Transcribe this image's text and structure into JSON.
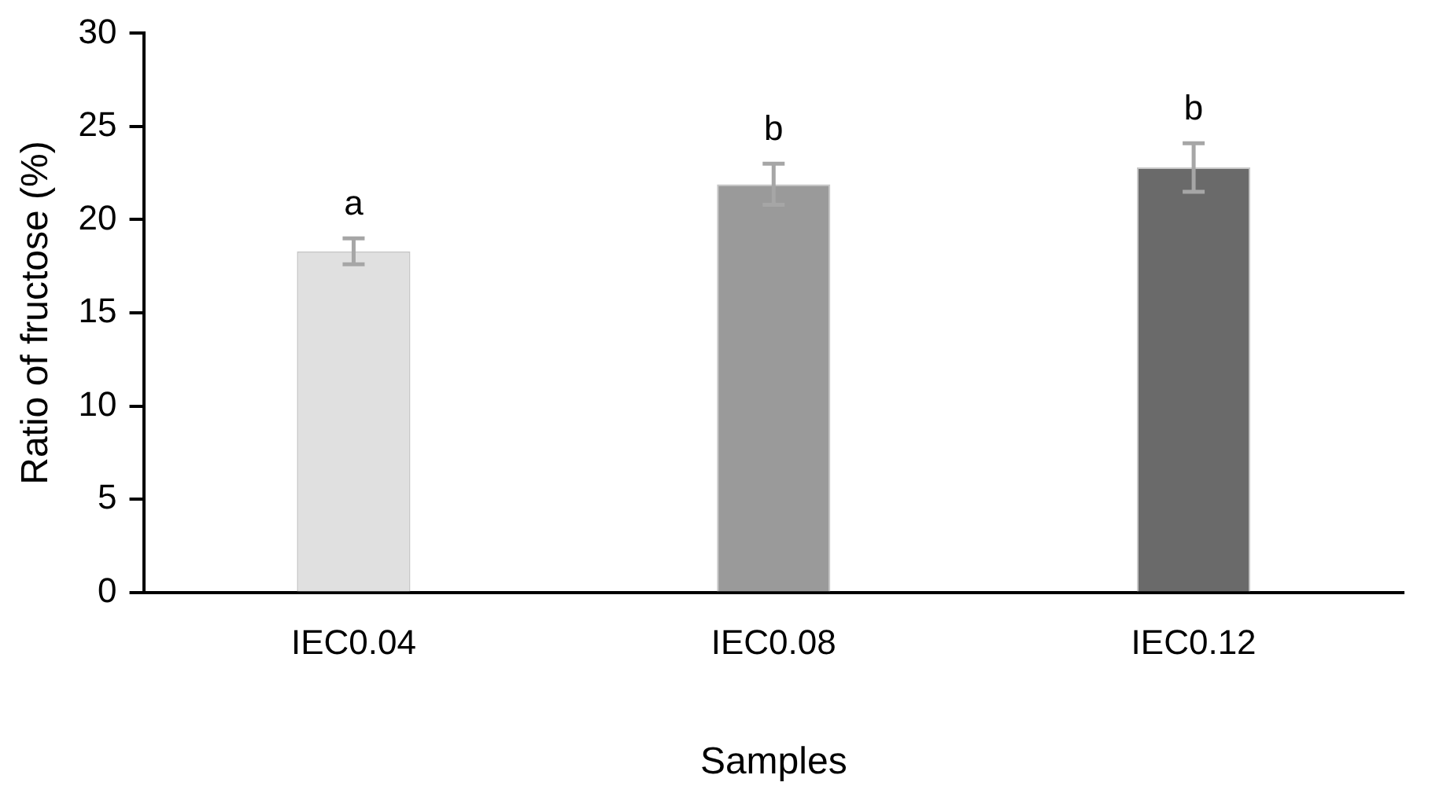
{
  "chart_data": {
    "type": "bar",
    "xlabel": "Samples",
    "ylabel": "Ratio of fructose (%)",
    "categories": [
      "IEC0.04",
      "IEC0.08",
      "IEC0.12"
    ],
    "values": [
      18.3,
      21.9,
      22.8
    ],
    "errors": [
      0.7,
      1.1,
      1.3
    ],
    "colors": [
      "#e0e0e0",
      "#9a9a9a",
      "#6a6a6a"
    ],
    "ylim": [
      0,
      30
    ],
    "yticks": [
      0,
      5,
      10,
      15,
      20,
      25,
      30
    ],
    "grid": false,
    "legend": false,
    "annotations": [
      "a",
      "b",
      "b"
    ]
  }
}
